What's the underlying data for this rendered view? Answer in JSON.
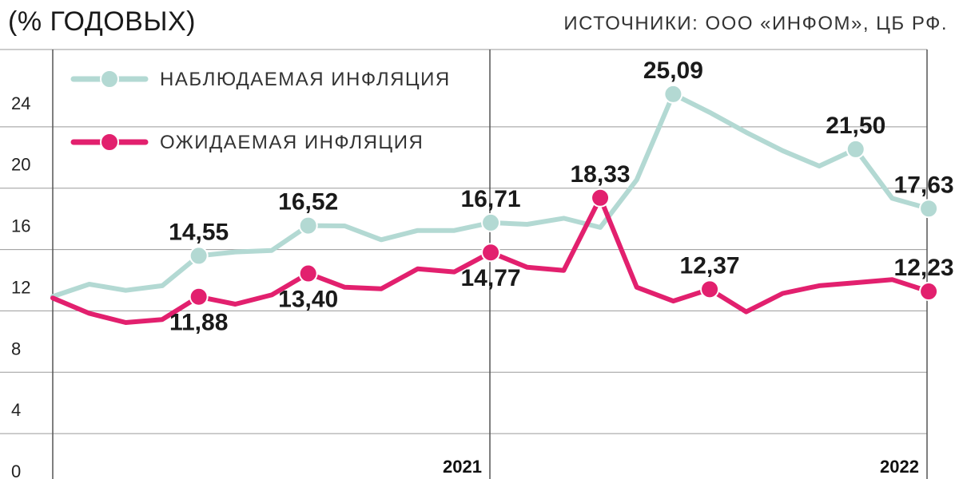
{
  "header": {
    "title": "(% ГОДОВЫХ)",
    "source": "ИСТОЧНИКИ: ООО «ИНФОМ», ЦБ РФ."
  },
  "colors": {
    "observed": "#b3d9d3",
    "expected": "#e2206e",
    "grid": "#9a9a9a",
    "axis": "#555555"
  },
  "chart_data": {
    "type": "line",
    "ylim": [
      0,
      28
    ],
    "yticks": [
      0,
      4,
      8,
      12,
      16,
      20,
      24
    ],
    "x_tick_labels": [
      {
        "index": 12,
        "label": "2021"
      },
      {
        "index": 24,
        "label": "2022"
      }
    ],
    "series": [
      {
        "key": "observed",
        "name": "НАБЛЮДАЕМАЯ ИНФЛЯЦИЯ",
        "values": [
          11.9,
          12.7,
          12.3,
          12.6,
          14.55,
          14.8,
          14.9,
          16.52,
          16.5,
          15.6,
          16.2,
          16.2,
          16.71,
          16.6,
          17.0,
          16.4,
          19.5,
          25.09,
          23.9,
          22.6,
          21.4,
          20.4,
          21.5,
          18.3,
          17.63
        ],
        "labels": [
          {
            "index": 4,
            "text": "14,55",
            "pos": "above"
          },
          {
            "index": 7,
            "text": "16,52",
            "pos": "above"
          },
          {
            "index": 12,
            "text": "16,71",
            "pos": "above"
          },
          {
            "index": 17,
            "text": "25,09",
            "pos": "above"
          },
          {
            "index": 22,
            "text": "21,50",
            "pos": "above"
          },
          {
            "index": 24,
            "text": "17,63",
            "pos": "above"
          }
        ],
        "markers": [
          4,
          7,
          12,
          17,
          22,
          24
        ]
      },
      {
        "key": "expected",
        "name": "ОЖИДАЕМАЯ ИНФЛЯЦИЯ",
        "values": [
          11.8,
          10.8,
          10.2,
          10.4,
          11.88,
          11.4,
          12.0,
          13.4,
          12.5,
          12.4,
          13.7,
          13.5,
          14.77,
          13.8,
          13.6,
          18.33,
          12.5,
          11.6,
          12.37,
          10.9,
          12.1,
          12.6,
          12.8,
          13.0,
          12.23
        ],
        "labels": [
          {
            "index": 4,
            "text": "11,88",
            "pos": "below"
          },
          {
            "index": 7,
            "text": "13,40",
            "pos": "below"
          },
          {
            "index": 12,
            "text": "14,77",
            "pos": "below"
          },
          {
            "index": 15,
            "text": "18,33",
            "pos": "above"
          },
          {
            "index": 18,
            "text": "12,37",
            "pos": "above"
          },
          {
            "index": 24,
            "text": "12,23",
            "pos": "above"
          }
        ],
        "markers": [
          4,
          7,
          12,
          15,
          18,
          24
        ]
      }
    ]
  }
}
